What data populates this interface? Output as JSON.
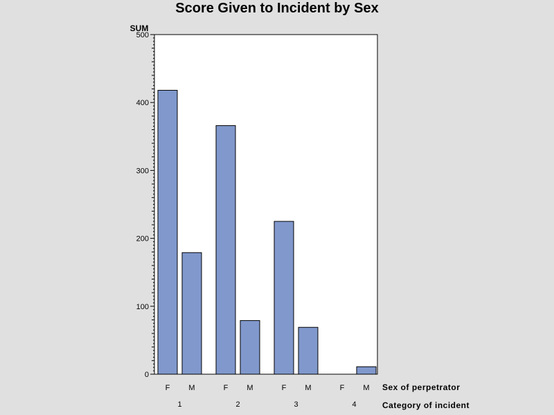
{
  "chart_data": {
    "type": "bar",
    "title": "Score Given to Incident by Sex",
    "ylabel": "SUM",
    "ylim": [
      0,
      500
    ],
    "yticks": [
      0,
      100,
      200,
      300,
      400,
      500
    ],
    "row_labels": {
      "inner": "Sex of perpetrator",
      "outer": "Category of incident"
    },
    "groups": [
      {
        "label": "1",
        "bars": [
          {
            "sex": "F",
            "value": 418
          },
          {
            "sex": "M",
            "value": 179
          }
        ]
      },
      {
        "label": "2",
        "bars": [
          {
            "sex": "F",
            "value": 366
          },
          {
            "sex": "M",
            "value": 79
          }
        ]
      },
      {
        "label": "3",
        "bars": [
          {
            "sex": "F",
            "value": 225
          },
          {
            "sex": "M",
            "value": 69
          }
        ]
      },
      {
        "label": "4",
        "bars": [
          {
            "sex": "F",
            "value": 0
          },
          {
            "sex": "M",
            "value": 11
          }
        ]
      }
    ],
    "colors": {
      "bar_fill": "#8098cc",
      "bar_stroke": "#000000",
      "plot_bg": "#ffffff",
      "page_bg": "#e0e0e0"
    }
  }
}
